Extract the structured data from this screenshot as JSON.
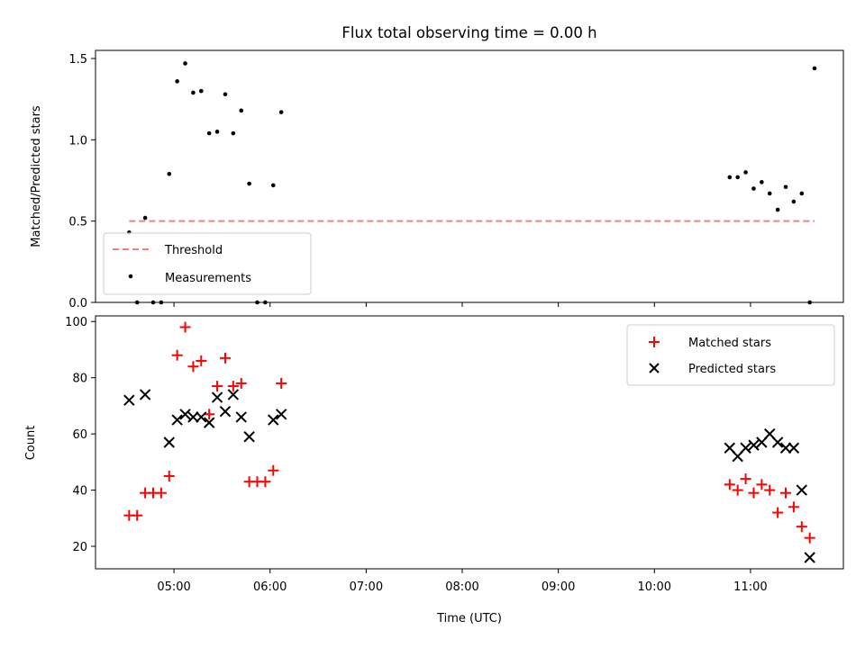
{
  "figure": {
    "title": "Flux total observing time = 0.00 h"
  },
  "chart_data": [
    {
      "type": "scatter",
      "ylabel": "Matched/Predicted stars",
      "xlim": [
        "04:11",
        "11:58"
      ],
      "ylim": [
        0,
        1.55
      ],
      "yticks": [
        0.0,
        0.5,
        1.0,
        1.5
      ],
      "ytick_labels": [
        "0.0",
        "0.5",
        "1.0",
        "1.5"
      ],
      "grid": false,
      "legend_location": "lower-left",
      "threshold": {
        "name": "Threshold",
        "value": 0.5,
        "x": [
          "04:32",
          "11:40"
        ],
        "color": "#f28080"
      },
      "series": [
        {
          "name": "Measurements",
          "color": "#000000",
          "x": [
            "04:32",
            "04:37",
            "04:42",
            "04:47",
            "04:52",
            "04:57",
            "05:02",
            "05:07",
            "05:12",
            "05:17",
            "05:22",
            "05:27",
            "05:32",
            "05:37",
            "05:42",
            "05:47",
            "05:52",
            "05:57",
            "06:02",
            "06:07",
            "10:47",
            "10:52",
            "10:57",
            "11:02",
            "11:07",
            "11:12",
            "11:17",
            "11:22",
            "11:27",
            "11:32",
            "11:37",
            "11:40"
          ],
          "y": [
            0.43,
            0.0,
            0.52,
            0.0,
            0.0,
            0.79,
            1.36,
            1.47,
            1.29,
            1.3,
            1.04,
            1.05,
            1.28,
            1.04,
            1.18,
            0.73,
            0.0,
            0.0,
            0.72,
            1.17,
            0.77,
            0.77,
            0.8,
            0.7,
            0.74,
            0.67,
            0.57,
            0.71,
            0.62,
            0.67,
            0.0,
            1.44
          ]
        }
      ]
    },
    {
      "type": "scatter",
      "xlabel": "Time (UTC)",
      "ylabel": "Count",
      "xlim": [
        "04:11",
        "11:58"
      ],
      "ylim": [
        12,
        102
      ],
      "yticks": [
        20,
        40,
        60,
        80,
        100
      ],
      "xticks": [
        "05:00",
        "06:00",
        "07:00",
        "08:00",
        "09:00",
        "10:00",
        "11:00"
      ],
      "grid": false,
      "legend_location": "upper-right",
      "series": [
        {
          "name": "Matched stars",
          "marker": "plus",
          "color": "#ff0000",
          "x": [
            "04:32",
            "04:37",
            "04:42",
            "04:47",
            "04:52",
            "04:57",
            "05:02",
            "05:07",
            "05:12",
            "05:17",
            "05:22",
            "05:27",
            "05:32",
            "05:37",
            "05:42",
            "05:47",
            "05:52",
            "05:57",
            "06:02",
            "06:07",
            "10:47",
            "10:52",
            "10:57",
            "11:02",
            "11:07",
            "11:12",
            "11:17",
            "11:22",
            "11:27",
            "11:32",
            "11:37"
          ],
          "y": [
            31,
            31,
            39,
            39,
            39,
            45,
            88,
            98,
            84,
            86,
            67,
            77,
            87,
            77,
            78,
            43,
            43,
            43,
            47,
            78,
            42,
            40,
            44,
            39,
            42,
            40,
            32,
            39,
            34,
            27,
            23
          ]
        },
        {
          "name": "Predicted stars",
          "marker": "x",
          "color": "#000000",
          "x": [
            "04:32",
            "04:42",
            "04:57",
            "05:02",
            "05:07",
            "05:12",
            "05:17",
            "05:22",
            "05:27",
            "05:32",
            "05:37",
            "05:42",
            "05:47",
            "06:02",
            "06:07",
            "10:47",
            "10:52",
            "10:57",
            "11:02",
            "11:07",
            "11:12",
            "11:17",
            "11:22",
            "11:27",
            "11:32",
            "11:37"
          ],
          "y": [
            72,
            74,
            57,
            65,
            67,
            66,
            66,
            64,
            73,
            68,
            74,
            66,
            59,
            65,
            67,
            55,
            52,
            55,
            56,
            57,
            60,
            57,
            55,
            55,
            40,
            16
          ]
        }
      ]
    }
  ]
}
